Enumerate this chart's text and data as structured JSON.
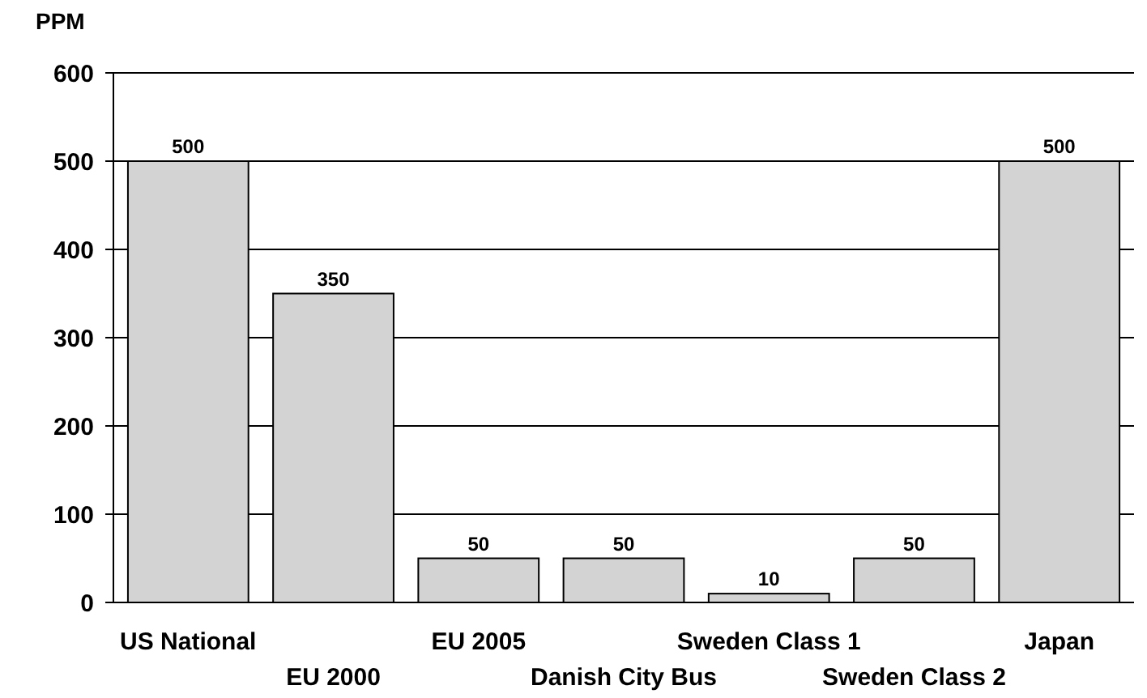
{
  "chart_data": {
    "type": "bar",
    "ylabel": "PPM",
    "categories": [
      "US National",
      "EU 2000",
      "EU 2005",
      "Danish City Bus",
      "Sweden Class 1",
      "Sweden Class 2",
      "Japan"
    ],
    "values": [
      500,
      350,
      50,
      50,
      10,
      50,
      500
    ],
    "color": "#d3d3d3",
    "ylim": [
      0,
      600
    ],
    "yticks": [
      0,
      100,
      200,
      300,
      400,
      500,
      600
    ],
    "grid": "y",
    "data_labels": true
  }
}
